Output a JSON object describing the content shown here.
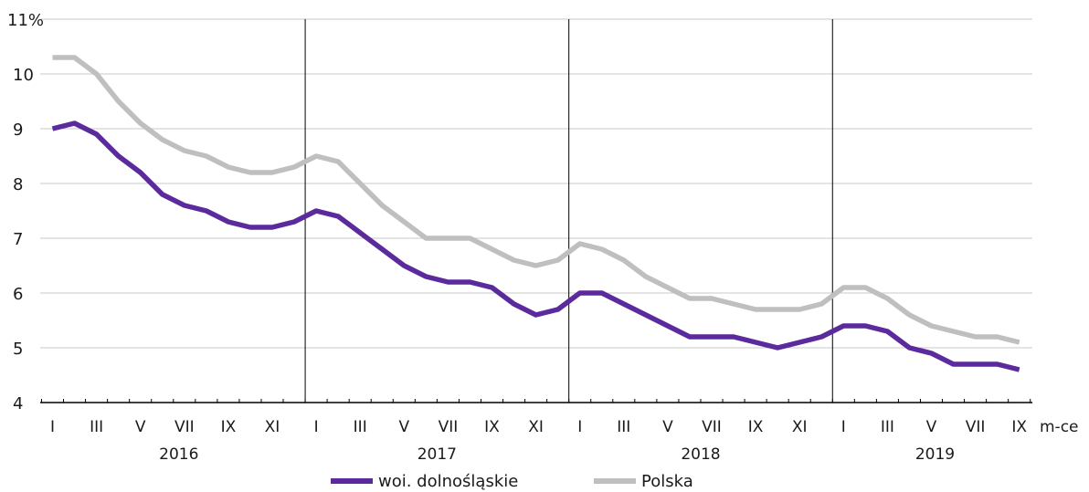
{
  "chart_data": {
    "type": "line",
    "y_unit_label": "%",
    "ylim": [
      4,
      11
    ],
    "yticks": [
      4,
      5,
      6,
      7,
      8,
      9,
      10,
      11
    ],
    "x_axis_label": "m-ce",
    "month_tick_labels": [
      "I",
      "III",
      "V",
      "VII",
      "IX",
      "XI"
    ],
    "years": [
      "2016",
      "2017",
      "2018",
      "2019"
    ],
    "months_per_year": [
      12,
      12,
      12,
      9
    ],
    "grid": "horizontal",
    "legend_position": "bottom",
    "series": [
      {
        "name": "woi. dolnośląskie",
        "color": "#5b2a9c",
        "values": [
          9.0,
          9.1,
          8.9,
          8.5,
          8.2,
          7.8,
          7.6,
          7.5,
          7.3,
          7.2,
          7.2,
          7.3,
          7.5,
          7.4,
          7.1,
          6.8,
          6.5,
          6.3,
          6.2,
          6.2,
          6.1,
          5.8,
          5.6,
          5.7,
          6.0,
          6.0,
          5.8,
          5.6,
          5.4,
          5.2,
          5.2,
          5.2,
          5.1,
          5.0,
          5.1,
          5.2,
          5.4,
          5.4,
          5.3,
          5.0,
          4.9,
          4.7,
          4.7,
          4.7,
          4.6
        ]
      },
      {
        "name": "Polska",
        "color": "#bfbfbf",
        "values": [
          10.3,
          10.3,
          10.0,
          9.5,
          9.1,
          8.8,
          8.6,
          8.5,
          8.3,
          8.2,
          8.2,
          8.3,
          8.5,
          8.4,
          8.0,
          7.6,
          7.3,
          7.0,
          7.0,
          7.0,
          6.8,
          6.6,
          6.5,
          6.6,
          6.9,
          6.8,
          6.6,
          6.3,
          6.1,
          5.9,
          5.9,
          5.8,
          5.7,
          5.7,
          5.7,
          5.8,
          6.1,
          6.1,
          5.9,
          5.6,
          5.4,
          5.3,
          5.2,
          5.2,
          5.1
        ]
      }
    ]
  }
}
